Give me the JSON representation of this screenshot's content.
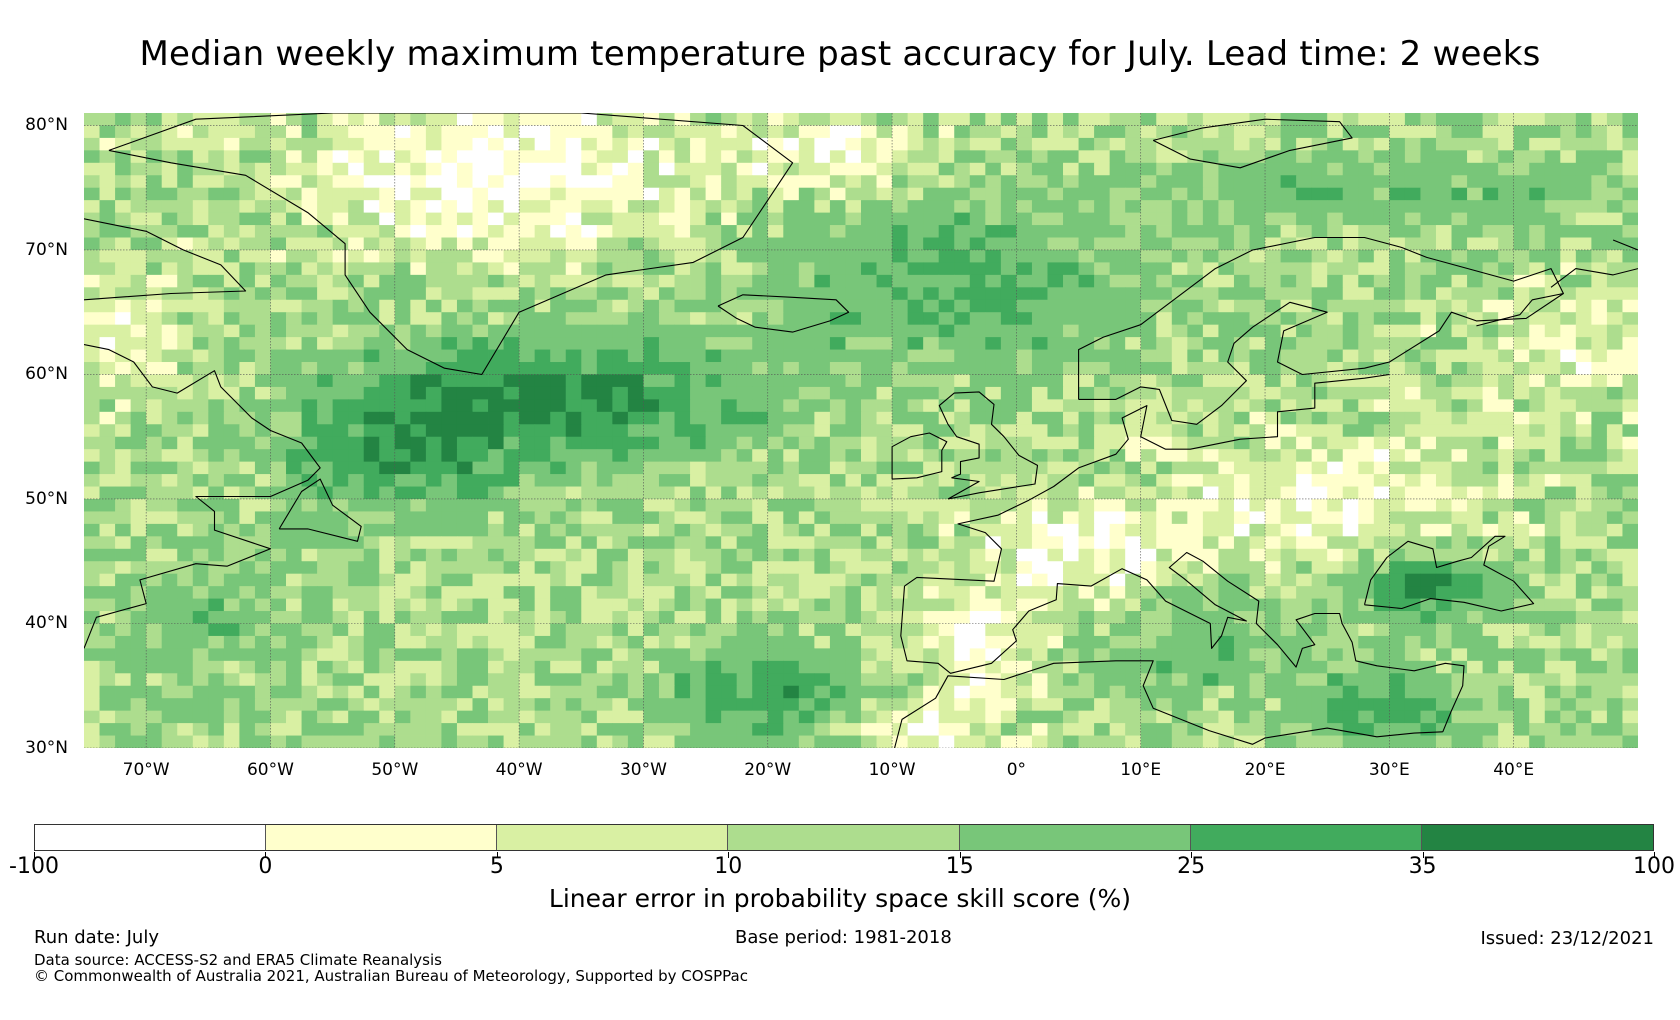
{
  "title": "Median weekly maximum temperature past accuracy for July. Lead time: 2 weeks",
  "map": {
    "lat_labels": [
      "80°N",
      "70°N",
      "60°N",
      "50°N",
      "40°N",
      "30°N"
    ],
    "lon_labels": [
      "70°W",
      "60°W",
      "50°W",
      "40°W",
      "30°W",
      "20°W",
      "10°W",
      "0°",
      "10°E",
      "20°E",
      "30°E",
      "40°E"
    ],
    "lat_values": [
      80,
      70,
      60,
      50,
      40,
      30
    ],
    "lon_values": [
      -70,
      -60,
      -50,
      -40,
      -30,
      -20,
      -10,
      0,
      10,
      20,
      30,
      40
    ],
    "extent": {
      "lon_min": -75,
      "lon_max": 50,
      "lat_min": 30,
      "lat_max": 81
    }
  },
  "colorbar": {
    "tick_labels": [
      "-100",
      "0",
      "5",
      "10",
      "15",
      "25",
      "35",
      "100"
    ],
    "bins": [
      {
        "from": -100,
        "to": 0,
        "color": "#ffffff"
      },
      {
        "from": 0,
        "to": 5,
        "color": "#ffffcc"
      },
      {
        "from": 5,
        "to": 10,
        "color": "#d9f0a3"
      },
      {
        "from": 10,
        "to": 15,
        "color": "#addd8e"
      },
      {
        "from": 15,
        "to": 25,
        "color": "#78c679"
      },
      {
        "from": 25,
        "to": 35,
        "color": "#41ab5d"
      },
      {
        "from": 35,
        "to": 100,
        "color": "#238443"
      }
    ],
    "title": "Linear error in probability space skill score (%)"
  },
  "footer": {
    "run_date": "Run date: July",
    "base_period": "Base period: 1981-2018",
    "issued": "Issued: 23/12/2021",
    "data_source": "Data source: ACCESS-S2 and ERA5 Climate Reanalysis",
    "copyright": "© Commonwealth of Australia 2021, Australian Bureau of Meteorology, Supported by COSPPac"
  }
}
